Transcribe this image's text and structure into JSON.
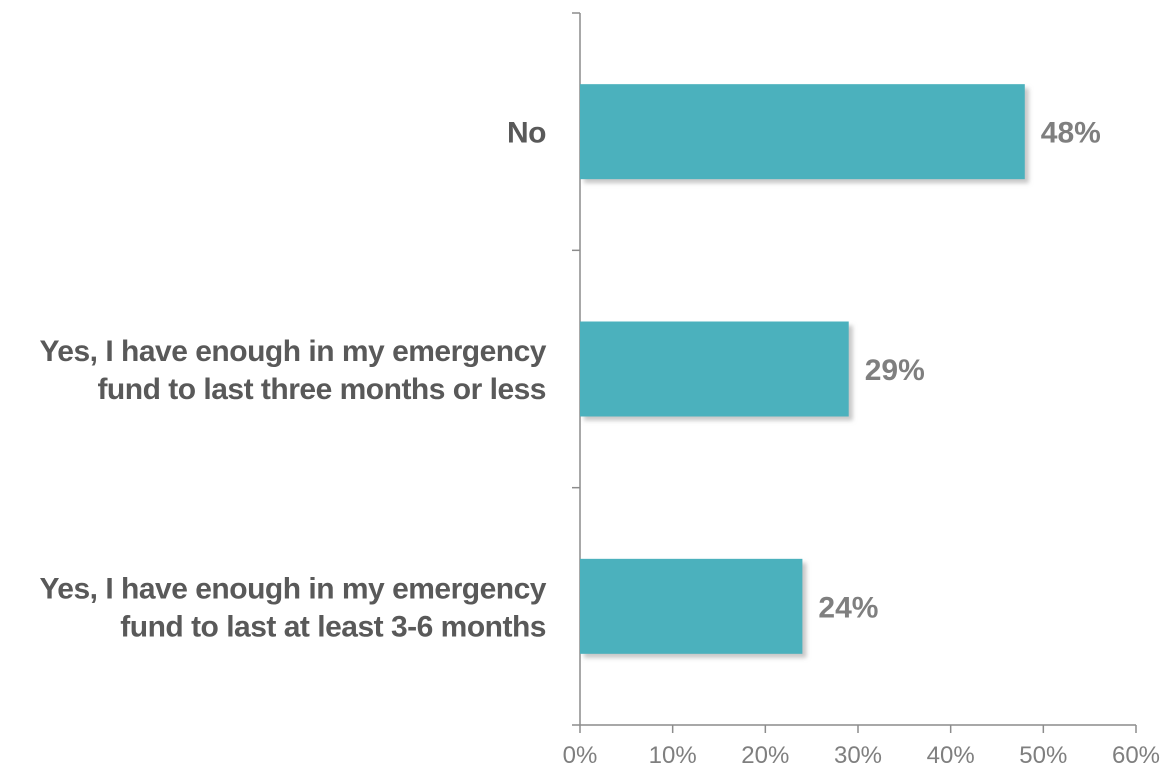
{
  "chart_data": {
    "type": "bar",
    "orientation": "horizontal",
    "categories": [
      [
        "No"
      ],
      [
        "Yes, I have enough in my emergency",
        "fund to last three months or less"
      ],
      [
        "Yes, I have enough in my emergency",
        "fund to last at least 3-6 months"
      ]
    ],
    "values": [
      48,
      29,
      24
    ],
    "data_labels": [
      "48%",
      "29%",
      "24%"
    ],
    "xlim": [
      0,
      60
    ],
    "x_ticks": [
      0,
      10,
      20,
      30,
      40,
      50,
      60
    ],
    "x_tick_labels": [
      "0%",
      "10%",
      "20%",
      "30%",
      "40%",
      "50%",
      "60%"
    ],
    "title": "",
    "xlabel": "",
    "ylabel": "",
    "grid": false,
    "legend": "none",
    "colors": {
      "bar": "#4bb1bd",
      "bar_shadow": "#c9c9c9",
      "axis": "#8c8c8c",
      "category_text": "#595959",
      "value_text": "#7f7f7f"
    }
  }
}
